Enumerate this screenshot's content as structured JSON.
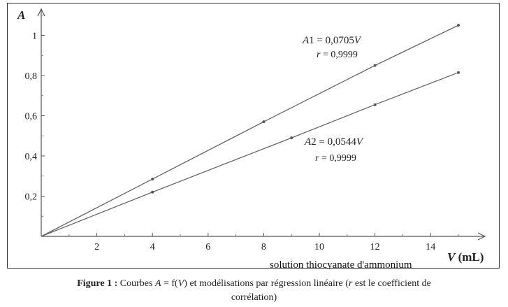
{
  "chart_data": {
    "type": "line",
    "xlabel_var": "V",
    "xlabel_unit": "(mL)",
    "ylabel": "A",
    "xlim": [
      0,
      16
    ],
    "ylim": [
      0,
      1.1
    ],
    "x_ticks": [
      2,
      4,
      6,
      8,
      10,
      12,
      14
    ],
    "y_ticks": [
      0.2,
      0.4,
      0.6,
      0.8,
      1
    ],
    "x_tick_labels": [
      "2",
      "4",
      "6",
      "8",
      "10",
      "12",
      "14"
    ],
    "y_tick_labels": [
      "0,2",
      "0,4",
      "0,6",
      "0,8",
      "1"
    ],
    "annotation": "solution thiocyanate d'ammonium",
    "series": [
      {
        "name": "A1",
        "equation": "A1 = 0,0705V",
        "eq_prefix": "A1 = 0,0705",
        "eq_var": "V",
        "r_label": "r",
        "r_value": " = 0,9999",
        "x": [
          0,
          4,
          8,
          12,
          15
        ],
        "y": [
          0,
          0.285,
          0.57,
          0.85,
          1.05
        ]
      },
      {
        "name": "A2",
        "equation": "A2 = 0,0544V",
        "eq_prefix": "A2 = 0,0544",
        "eq_var": "V",
        "r_label": "r",
        "r_value": " = 0,9999",
        "x": [
          0,
          4,
          9,
          12,
          15
        ],
        "y": [
          0,
          0.22,
          0.49,
          0.655,
          0.815
        ]
      }
    ]
  },
  "caption": {
    "label": "Figure 1 :",
    "text1": " Courbes ",
    "var_a": "A",
    "text2": " = f(",
    "var_v": "V",
    "text3": ") et modélisations par régression linéaire (",
    "var_r": "r",
    "text4": " est le coefficient de",
    "line2": "corrélation)"
  }
}
